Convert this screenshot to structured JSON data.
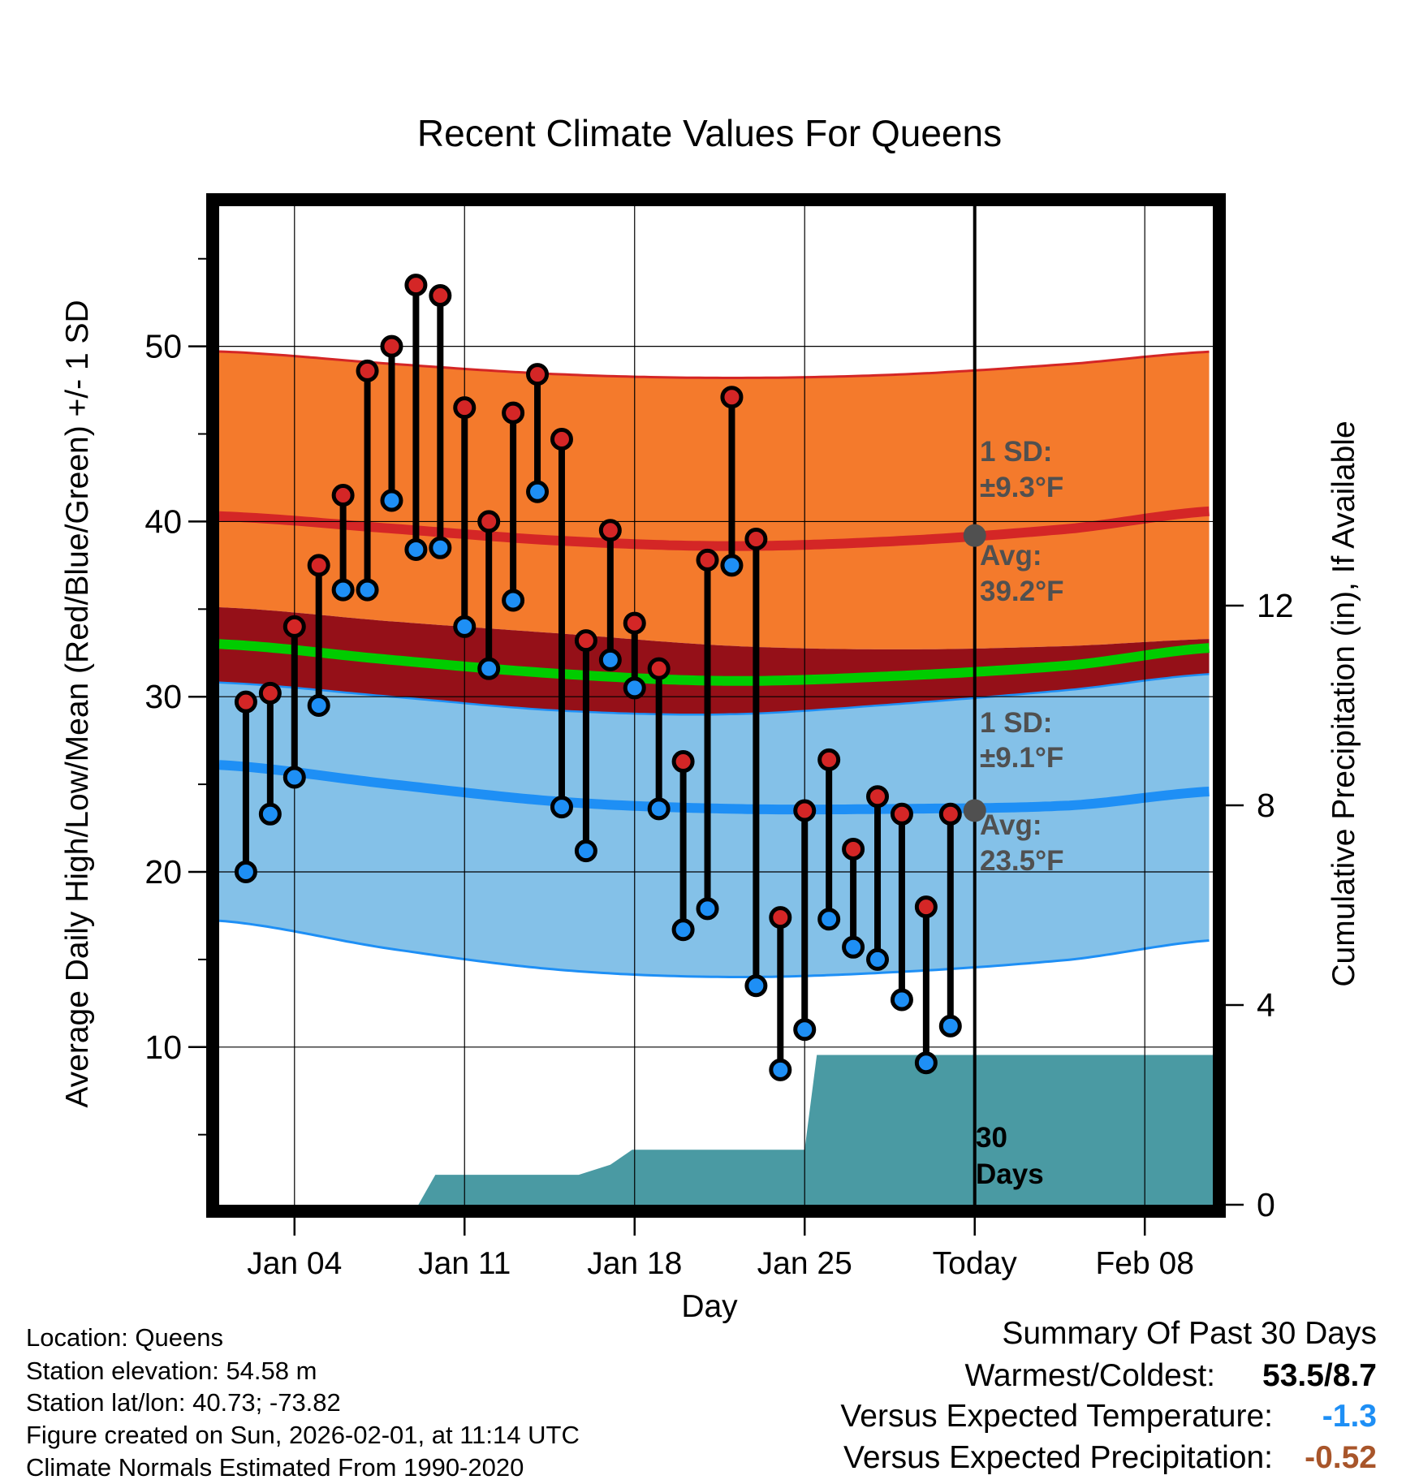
{
  "chart_data": {
    "type": "line",
    "title": "Recent Climate Values For Queens",
    "xlabel": "Day",
    "ylabel_left": "Average Daily High/Low/Mean (Red/Blue/Green) +/- 1 SD",
    "ylabel_right": "Cumulative Precipitation (in), If Available",
    "x_tick_labels": [
      "Jan 04",
      "Jan 11",
      "Jan 18",
      "Jan 25",
      "Today",
      "Feb 08"
    ],
    "x_tick_days": [
      4,
      11,
      18,
      25,
      32,
      39
    ],
    "xlim": [
      0.9,
      41.8
    ],
    "ylim": [
      1,
      58
    ],
    "y_ticks": [
      10,
      20,
      30,
      40,
      50
    ],
    "y_ticks_labels": [
      "10",
      "20",
      "30",
      "40",
      "50"
    ],
    "y2lim": [
      0,
      20
    ],
    "y2_ticks": [
      0,
      4,
      8,
      12
    ],
    "y2_ticks_labels": [
      "0",
      "4",
      "8",
      "12"
    ],
    "today_day": 32,
    "days": [
      2,
      3,
      4,
      5,
      6,
      7,
      8,
      9,
      10,
      11,
      12,
      13,
      14,
      15,
      16,
      17,
      18,
      19,
      20,
      21,
      22,
      23,
      24,
      25,
      26,
      27,
      28,
      29,
      30,
      31
    ],
    "highs": [
      29.7,
      30.2,
      34.0,
      37.5,
      41.5,
      48.6,
      50.0,
      53.5,
      52.9,
      46.5,
      40.0,
      46.2,
      48.4,
      44.7,
      33.2,
      39.5,
      34.2,
      31.6,
      26.3,
      37.8,
      47.1,
      39.0,
      17.4,
      23.5,
      26.4,
      21.3,
      24.3,
      23.3,
      18.0,
      23.3
    ],
    "lows": [
      20.0,
      23.3,
      25.4,
      29.5,
      36.1,
      36.1,
      41.2,
      38.4,
      38.5,
      34.0,
      31.6,
      35.5,
      41.7,
      23.7,
      21.2,
      32.1,
      30.5,
      23.6,
      16.7,
      17.9,
      37.5,
      13.5,
      8.7,
      11.0,
      17.3,
      15.7,
      15.0,
      12.7,
      9.1,
      11.2
    ],
    "normals": {
      "days": [
        1.0,
        8,
        15,
        22,
        29,
        36,
        41.8
      ],
      "high_avg": [
        40.3,
        39.6,
        38.9,
        38.6,
        38.9,
        39.6,
        40.6
      ],
      "high_sd_upper": [
        49.7,
        49.0,
        48.4,
        48.2,
        48.4,
        49.0,
        49.7
      ],
      "high_sd_lower": [
        35.1,
        34.3,
        33.6,
        32.9,
        32.7,
        32.9,
        33.3
      ],
      "low_avg": [
        26.1,
        25.0,
        24.0,
        23.6,
        23.6,
        23.8,
        24.6
      ],
      "low_sd_upper": [
        30.8,
        30.0,
        29.2,
        29.0,
        29.6,
        30.4,
        31.3
      ],
      "low_sd_lower": [
        17.2,
        15.6,
        14.4,
        14.0,
        14.3,
        15.0,
        16.1
      ],
      "mean": [
        33.0,
        32.1,
        31.3,
        30.9,
        31.2,
        31.8,
        32.8
      ]
    },
    "precip": {
      "days": [
        1.0,
        9.1,
        9.8,
        15.7,
        17,
        17.9,
        25.0,
        25.5,
        41.8
      ],
      "values": [
        0.0,
        0.0,
        0.6,
        0.6,
        0.8,
        1.1,
        1.1,
        3.0,
        3.0
      ]
    },
    "annotation_high_sd": "1 SD:",
    "annotation_high_sd_value": "±9.3°F",
    "annotation_high_avg": "Avg:",
    "annotation_high_avg_value": "39.2°F",
    "annotation_low_sd": "1 SD:",
    "annotation_low_sd_value": "±9.1°F",
    "annotation_low_avg": "Avg:",
    "annotation_low_avg_value": "23.5°F",
    "marker_high_today": 39.2,
    "marker_low_today": 23.5,
    "days_label_1": "30",
    "days_label_2": "Days"
  },
  "info": {
    "location": "Location: Queens",
    "elevation": "Station elevation: 54.58 m",
    "latlon": "Station lat/lon: 40.73; -73.82",
    "created": "Figure created on Sun, 2026-02-01, at 11:14 UTC",
    "normals": "Climate Normals Estimated From 1990-2020"
  },
  "summary": {
    "title": "Summary Of Past 30 Days",
    "warmest_label": "Warmest/Coldest:",
    "warmest_value": "53.5/8.7",
    "temp_label": "Versus Expected Temperature:",
    "temp_value": "-1.3",
    "precip_label": "Versus Expected Precipitation:",
    "precip_value": "-0.52"
  },
  "colors": {
    "high_band": "#f47a2c",
    "high_line": "#d42626",
    "low_band": "#84c1e8",
    "low_line": "#1e8ff5",
    "overlap": "#951018",
    "mean_line": "#00cc00",
    "precip_fill": "#4a9aa3",
    "high_marker": "#d42626",
    "low_marker": "#1e8ff5",
    "annotation": "#505050",
    "temp_value": "#1e8ff5",
    "precip_value": "#a8552a"
  }
}
